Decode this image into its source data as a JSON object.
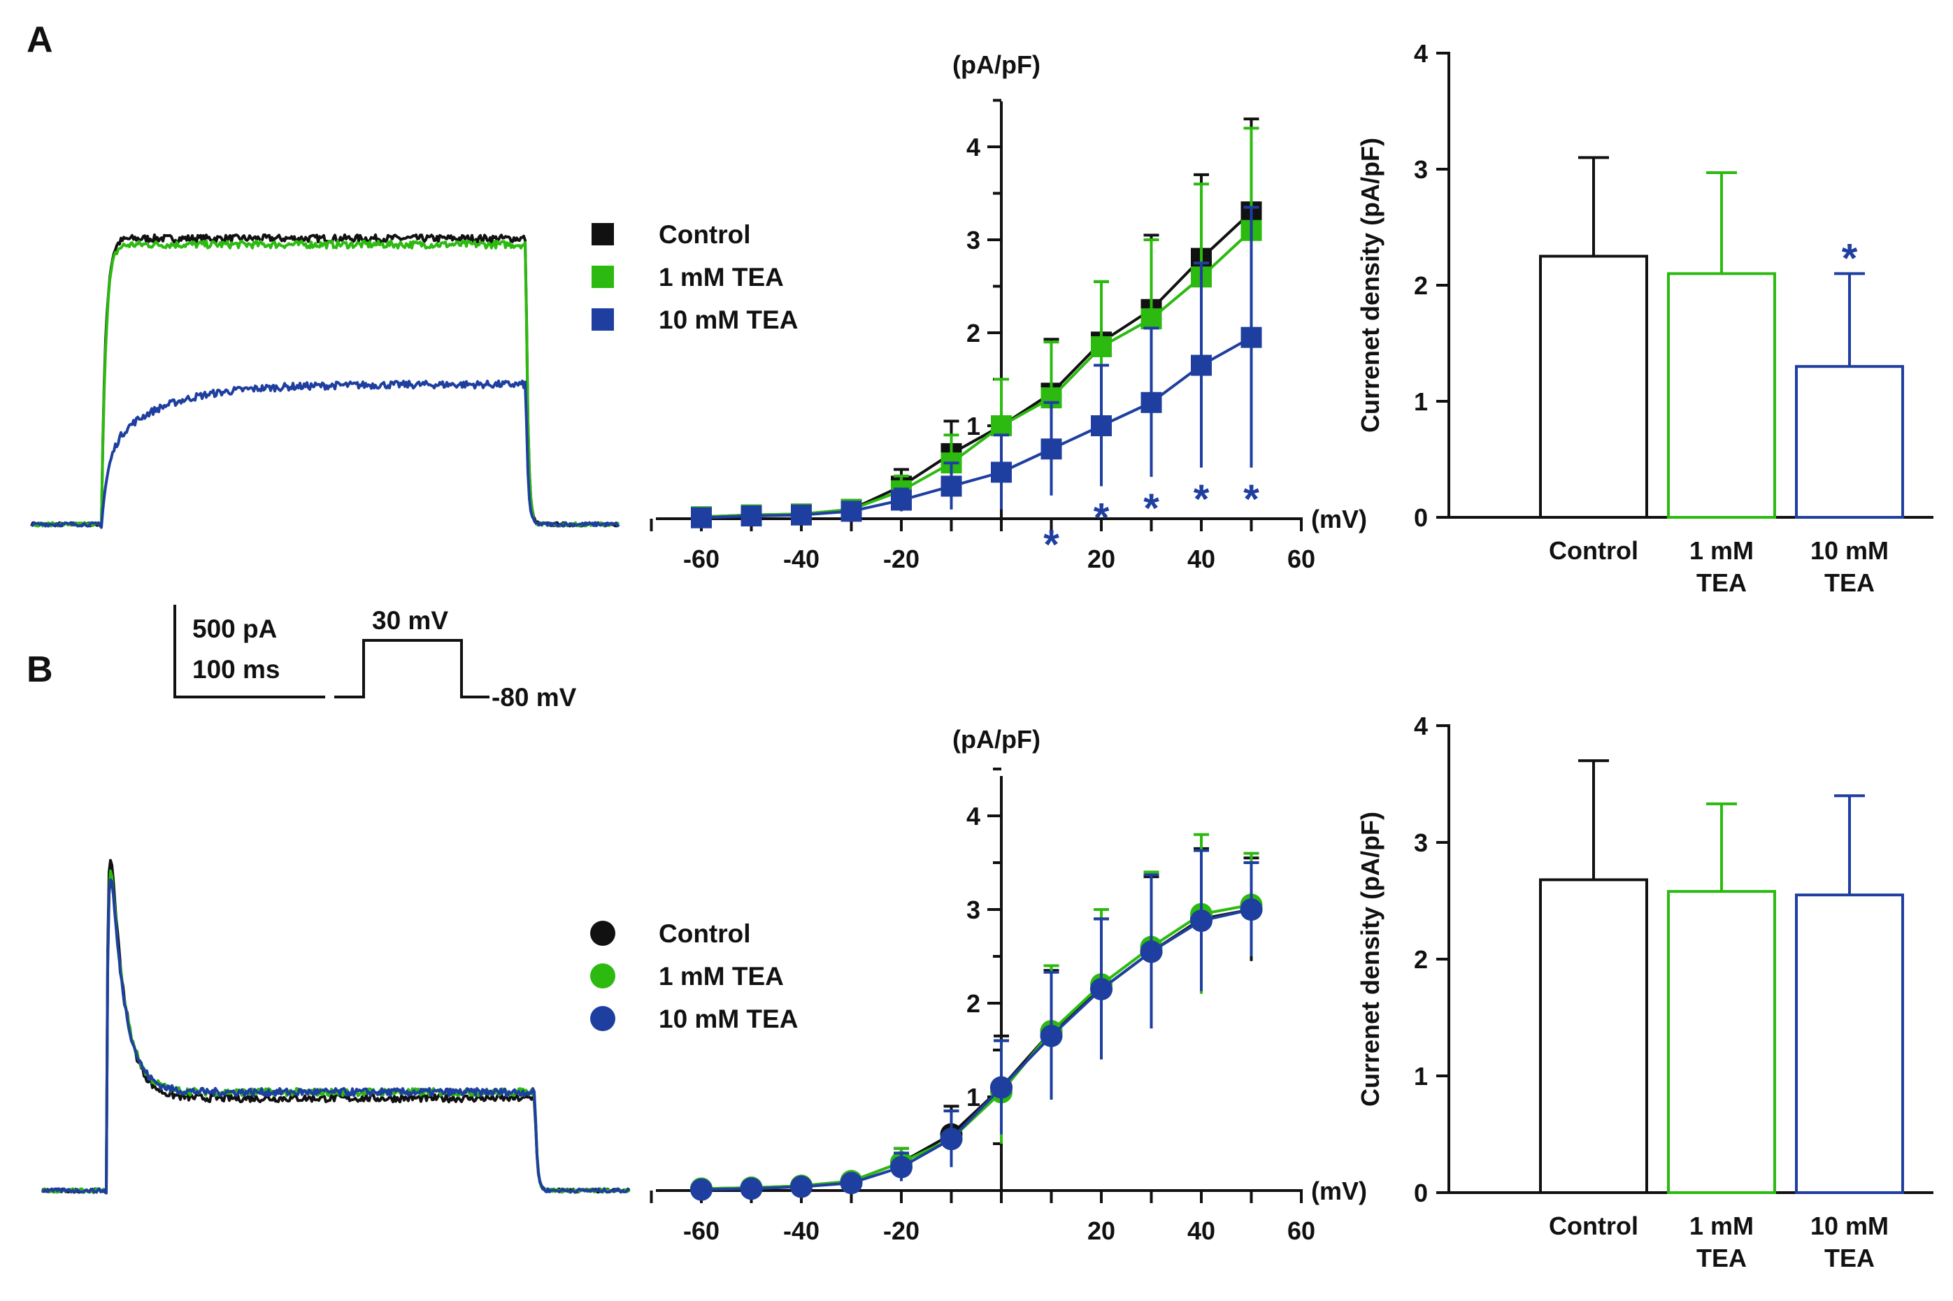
{
  "colors": {
    "control": "#111111",
    "tea1": "#2cba10",
    "tea10": "#1f3fa0"
  },
  "panels": {
    "a": "A",
    "b": "B"
  },
  "scale_bar": {
    "current": "500 pA",
    "time": "100 ms",
    "step": "30 mV",
    "holding": "-80 mV"
  },
  "chart_data": [
    {
      "id": "A-trace",
      "type": "line",
      "panel": "A",
      "description_series": [
        {
          "name": "Control",
          "color": "#111111",
          "shape": "sustained",
          "rise": 0.95,
          "plateau": 2.35
        },
        {
          "name": "1 mM TEA",
          "color": "#2cba10",
          "shape": "sustained",
          "rise": 0.95,
          "plateau": 2.3
        },
        {
          "name": "10 mM TEA",
          "color": "#1f3fa0",
          "shape": "slow-rise",
          "rise": 0.6,
          "plateau": 1.15
        }
      ]
    },
    {
      "id": "A-iv",
      "type": "line",
      "panel": "A",
      "marker": "square",
      "xlabel": "(mV)",
      "ylabel": "(pA/pF)",
      "xlim": [
        -70,
        60
      ],
      "ylim": [
        0,
        4.5
      ],
      "xticks": [
        -60,
        -40,
        -20,
        20,
        40,
        60
      ],
      "yticks": [
        1,
        2,
        3,
        4
      ],
      "x": [
        -60,
        -50,
        -40,
        -30,
        -20,
        -10,
        0,
        10,
        20,
        30,
        40,
        50
      ],
      "series": [
        {
          "name": "Control",
          "color": "#111111",
          "values": [
            0.02,
            0.04,
            0.05,
            0.1,
            0.35,
            0.7,
            1.0,
            1.35,
            1.9,
            2.25,
            2.8,
            3.3
          ],
          "err": [
            0.02,
            0.02,
            0.02,
            0.05,
            0.18,
            0.35,
            0.5,
            0.58,
            0.65,
            0.8,
            0.9,
            1.0
          ]
        },
        {
          "name": "1 mM TEA",
          "color": "#2cba10",
          "values": [
            0.02,
            0.04,
            0.05,
            0.1,
            0.3,
            0.6,
            1.0,
            1.3,
            1.85,
            2.15,
            2.6,
            3.1
          ],
          "err": [
            0.02,
            0.02,
            0.02,
            0.05,
            0.16,
            0.3,
            0.5,
            0.6,
            0.7,
            0.85,
            1.0,
            1.1
          ]
        },
        {
          "name": "10 mM TEA",
          "color": "#1f3fa0",
          "values": [
            0.01,
            0.03,
            0.04,
            0.08,
            0.2,
            0.35,
            0.5,
            0.75,
            1.0,
            1.25,
            1.65,
            1.95
          ],
          "err": [
            0.02,
            0.02,
            0.02,
            0.05,
            0.12,
            0.25,
            0.4,
            0.5,
            0.65,
            0.8,
            1.1,
            1.4
          ]
        }
      ],
      "significance_x": [
        10,
        20,
        30,
        40,
        50
      ],
      "significance_mark": "*",
      "legend": [
        "Control",
        "1 mM TEA",
        "10 mM TEA"
      ]
    },
    {
      "id": "A-bar",
      "type": "bar",
      "panel": "A",
      "ylabel": "Currenet density (pA/pF)",
      "ylim": [
        0,
        4
      ],
      "yticks": [
        0,
        1,
        2,
        3,
        4
      ],
      "categories": [
        [
          "Control"
        ],
        [
          "1 mM",
          "TEA"
        ],
        [
          "10 mM",
          "TEA"
        ]
      ],
      "values": [
        2.25,
        2.1,
        1.3
      ],
      "err": [
        0.85,
        0.87,
        0.8
      ],
      "colors": [
        "#111111",
        "#2cba10",
        "#1f3fa0"
      ],
      "significance": [
        null,
        null,
        "*"
      ]
    },
    {
      "id": "B-trace",
      "type": "line",
      "panel": "B",
      "description_series": [
        {
          "name": "Control",
          "color": "#111111",
          "shape": "transient",
          "peak": 3.75,
          "plateau": 0.75
        },
        {
          "name": "1 mM TEA",
          "color": "#2cba10",
          "shape": "transient",
          "peak": 3.55,
          "plateau": 0.8
        },
        {
          "name": "10 mM TEA",
          "color": "#1f3fa0",
          "shape": "transient",
          "peak": 3.5,
          "plateau": 0.8
        }
      ]
    },
    {
      "id": "B-iv",
      "type": "line",
      "panel": "B",
      "marker": "circle",
      "xlabel": "(mV)",
      "ylabel": "(pA/pF)",
      "xlim": [
        -70,
        60
      ],
      "ylim": [
        0,
        4.5
      ],
      "xticks": [
        -60,
        -40,
        -20,
        20,
        40,
        60
      ],
      "yticks": [
        1,
        2,
        3,
        4
      ],
      "x": [
        -60,
        -50,
        -40,
        -30,
        -20,
        -10,
        0,
        10,
        20,
        30,
        40,
        50
      ],
      "series": [
        {
          "name": "Control",
          "color": "#111111",
          "values": [
            0.02,
            0.03,
            0.05,
            0.1,
            0.3,
            0.6,
            1.1,
            1.7,
            2.15,
            2.55,
            2.9,
            3.0
          ],
          "err": [
            0.02,
            0.02,
            0.02,
            0.05,
            0.15,
            0.3,
            0.55,
            0.65,
            0.75,
            0.8,
            0.75,
            0.55
          ]
        },
        {
          "name": "1 mM TEA",
          "color": "#2cba10",
          "values": [
            0.02,
            0.03,
            0.05,
            0.1,
            0.3,
            0.55,
            1.05,
            1.7,
            2.2,
            2.6,
            2.95,
            3.05
          ],
          "err": [
            0.02,
            0.02,
            0.02,
            0.05,
            0.15,
            0.3,
            0.55,
            0.7,
            0.8,
            0.8,
            0.85,
            0.55
          ]
        },
        {
          "name": "10 mM TEA",
          "color": "#1f3fa0",
          "values": [
            0.01,
            0.02,
            0.04,
            0.08,
            0.25,
            0.55,
            1.1,
            1.65,
            2.15,
            2.55,
            2.88,
            3.0
          ],
          "err": [
            0.02,
            0.02,
            0.02,
            0.05,
            0.15,
            0.3,
            0.5,
            0.68,
            0.75,
            0.82,
            0.75,
            0.5
          ]
        }
      ],
      "legend": [
        "Control",
        "1 mM TEA",
        "10 mM TEA"
      ]
    },
    {
      "id": "B-bar",
      "type": "bar",
      "panel": "B",
      "ylabel": "Currenet density (pA/pF)",
      "ylim": [
        0,
        4
      ],
      "yticks": [
        0,
        1,
        2,
        3,
        4
      ],
      "categories": [
        [
          "Control"
        ],
        [
          "1 mM",
          "TEA"
        ],
        [
          "10 mM",
          "TEA"
        ]
      ],
      "values": [
        2.68,
        2.58,
        2.55
      ],
      "err": [
        1.02,
        0.75,
        0.85
      ],
      "colors": [
        "#111111",
        "#2cba10",
        "#1f3fa0"
      ],
      "significance": [
        null,
        null,
        null
      ]
    }
  ]
}
